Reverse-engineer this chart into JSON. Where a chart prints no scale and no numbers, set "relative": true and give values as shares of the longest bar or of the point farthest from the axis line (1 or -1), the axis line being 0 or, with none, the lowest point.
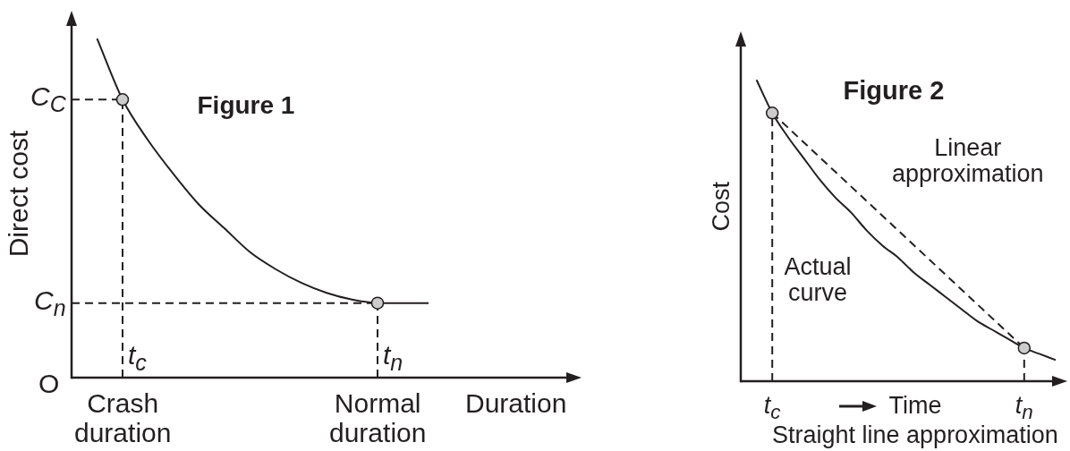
{
  "chart_data": [
    {
      "type": "line",
      "title": "Figure 1",
      "xlabel": "Duration",
      "ylabel": "Direct cost",
      "relative": true,
      "categories": [
        null,
        null,
        "Crash duration",
        null,
        null,
        null,
        null,
        null,
        null,
        null,
        null,
        null,
        "Normal duration",
        null,
        null,
        null,
        null,
        null,
        null,
        null,
        null
      ],
      "series": [
        {
          "color": "#231f20",
          "values": [
            null,
            1,
            0.82,
            0.7,
            0.6,
            0.51,
            0.44,
            0.37,
            0.32,
            0.28,
            0.25,
            0.23,
            0.22,
            0.22,
            0.22,
            null,
            null,
            null,
            null,
            null,
            null
          ]
        },
        {
          "color": "#231f20",
          "line_style": "dashed",
          "x": [
            "Normal duration",
            "Normal duration"
          ],
          "values": [
            0,
            0.22
          ]
        },
        {
          "type": "scatter",
          "marker": "circle",
          "color": "#cccccc",
          "x": [
            "Crash duration",
            "Normal duration"
          ],
          "values": [
            0.82,
            0.22
          ]
        }
      ],
      "ref_lines": [
        {
          "axis": "y",
          "value": 0.82,
          "label": "C$_{C}$",
          "line_style": "dashed"
        },
        {
          "axis": "y",
          "value": 0.22,
          "label": "C$_{n}$",
          "line_style": "dashed"
        },
        {
          "axis": "x",
          "value": "Crash duration",
          "label": "t$_{c}$",
          "line_style": "dashed"
        }
      ],
      "annotations": [
        "O",
        {
          "text": "t$_{n}$",
          "x": "Normal duration",
          "y": 0
        }
      ]
    },
    {
      "type": "line",
      "title": "Figure 2",
      "xlabel": "Time",
      "ylabel": "Cost",
      "relative": true,
      "categories": [
        null,
        null,
        "t$_{c}$",
        null,
        null,
        null,
        null,
        null,
        null,
        null,
        null,
        null,
        null,
        null,
        null,
        null,
        null,
        null,
        "t$_{n}$",
        null,
        null
      ],
      "series": [
        {
          "name": "Actual curve",
          "color": "#231f20",
          "values": [
            null,
            1,
            0.89,
            0.81,
            0.74,
            0.67,
            0.61,
            0.56,
            0.5,
            0.45,
            0.41,
            0.36,
            0.32,
            0.28,
            0.24,
            0.2,
            0.17,
            0.14,
            0.11,
            0.09,
            0.07
          ]
        },
        {
          "name": "Linear approximation",
          "color": "#231f20",
          "line_style": "dashed",
          "x": [
            "t$_{c}$",
            "t$_{n}$"
          ],
          "values": [
            0.89,
            0.11
          ]
        },
        {
          "color": "#231f20",
          "line_style": "dashed",
          "x": [
            "t$_{n}$",
            "t$_{n}$"
          ],
          "values": [
            0,
            0.11
          ]
        },
        {
          "type": "scatter",
          "marker": "circle",
          "color": "#cccccc",
          "x": [
            "t$_{c}$",
            "t$_{n}$"
          ],
          "values": [
            0.89,
            0.11
          ]
        }
      ],
      "ref_lines": [
        {
          "axis": "x",
          "value": "t$_{c}$",
          "line_style": "dashed"
        }
      ],
      "annotations": [
        "Straight line approximation"
      ]
    }
  ]
}
